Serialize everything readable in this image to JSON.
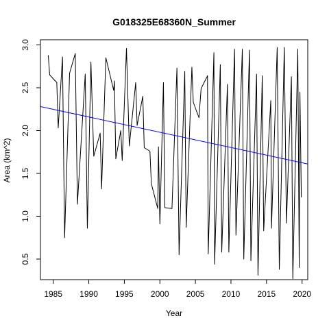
{
  "chart_data": {
    "type": "line",
    "title": "G018325E68360N_Summer",
    "xlabel": "Year",
    "ylabel": "Area (km^2)",
    "xlim": [
      1983.2,
      2020.8
    ],
    "ylim": [
      0.26,
      3.06
    ],
    "x_ticks": [
      "1985",
      "1990",
      "1995",
      "2000",
      "2005",
      "2010",
      "2015",
      "2020"
    ],
    "y_ticks": [
      "0.5",
      "1.0",
      "1.5",
      "2.0",
      "2.5",
      "3.0"
    ],
    "series": [
      {
        "color": "#000000",
        "points": [
          [
            1984.3,
            2.88
          ],
          [
            1984.5,
            2.65
          ],
          [
            1985.5,
            2.56
          ],
          [
            1985.7,
            2.03
          ],
          [
            1986.3,
            2.86
          ],
          [
            1986.6,
            0.75
          ],
          [
            1987.3,
            2.67
          ],
          [
            1988.1,
            2.9
          ],
          [
            1988.4,
            1.14
          ],
          [
            1989.5,
            2.66
          ],
          [
            1989.8,
            0.86
          ],
          [
            1990.3,
            2.8
          ],
          [
            1990.7,
            1.7
          ],
          [
            1991.6,
            1.97
          ],
          [
            1991.8,
            1.32
          ],
          [
            1992.4,
            2.85
          ],
          [
            1993.5,
            2.47
          ],
          [
            1993.6,
            2.58
          ],
          [
            1993.8,
            1.67
          ],
          [
            1994.5,
            2.0
          ],
          [
            1994.7,
            1.65
          ],
          [
            1995.3,
            2.96
          ],
          [
            1995.7,
            1.82
          ],
          [
            1996.6,
            2.56
          ],
          [
            1996.8,
            2.06
          ],
          [
            1997.6,
            2.4
          ],
          [
            1997.8,
            1.8
          ],
          [
            1998.6,
            1.76
          ],
          [
            1998.8,
            1.38
          ],
          [
            1999.7,
            1.09
          ],
          [
            1999.8,
            1.81
          ],
          [
            2000.0,
            0.91
          ],
          [
            2000.5,
            2.56
          ],
          [
            2000.7,
            1.1
          ],
          [
            2001.7,
            1.09
          ],
          [
            2002.4,
            2.73
          ],
          [
            2002.7,
            0.55
          ],
          [
            2003.5,
            2.69
          ],
          [
            2003.7,
            0.87
          ],
          [
            2004.5,
            2.74
          ],
          [
            2004.7,
            2.33
          ],
          [
            2005.5,
            2.15
          ],
          [
            2005.8,
            2.49
          ],
          [
            2006.7,
            2.64
          ],
          [
            2006.8,
            0.56
          ],
          [
            2007.6,
            2.91
          ],
          [
            2007.7,
            0.44
          ],
          [
            2008.5,
            2.77
          ],
          [
            2008.7,
            0.58
          ],
          [
            2009.5,
            2.54
          ],
          [
            2009.7,
            0.58
          ],
          [
            2010.5,
            2.95
          ],
          [
            2010.7,
            0.78
          ],
          [
            2011.6,
            2.95
          ],
          [
            2011.8,
            0.5
          ],
          [
            2012.6,
            2.94
          ],
          [
            2012.8,
            0.48
          ],
          [
            2013.6,
            2.66
          ],
          [
            2013.8,
            0.31
          ],
          [
            2014.4,
            2.64
          ],
          [
            2014.6,
            0.83
          ],
          [
            2015.6,
            2.35
          ],
          [
            2015.7,
            0.86
          ],
          [
            2016.5,
            2.97
          ],
          [
            2016.8,
            0.38
          ],
          [
            2017.5,
            2.97
          ],
          [
            2017.8,
            0.92
          ],
          [
            2018.5,
            2.63
          ],
          [
            2018.7,
            0.27
          ],
          [
            2019.4,
            2.95
          ],
          [
            2019.6,
            0.4
          ],
          [
            2019.7,
            2.45
          ],
          [
            2019.9,
            1.22
          ]
        ]
      },
      {
        "color": "#0000ff",
        "type": "trend",
        "points": [
          [
            1983.2,
            2.28
          ],
          [
            2020.8,
            1.61
          ]
        ]
      }
    ]
  }
}
